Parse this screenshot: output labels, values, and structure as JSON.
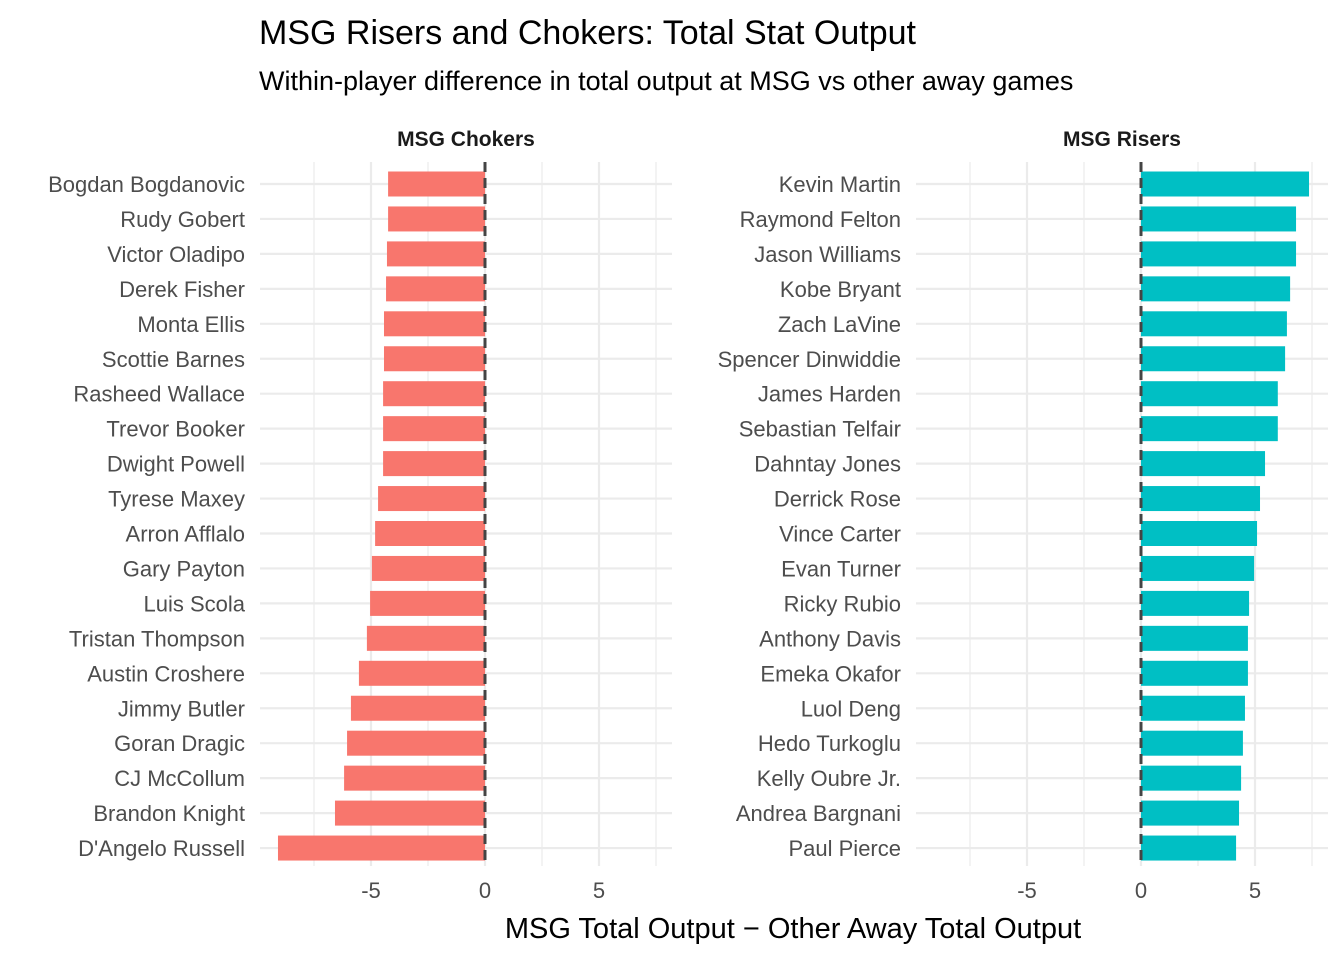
{
  "chart_data": [
    {
      "type": "bar",
      "orientation": "horizontal",
      "panel": "MSG Chokers",
      "color": "#F8766D",
      "categories": [
        "Bogdan Bogdanovic",
        "Rudy Gobert",
        "Victor Oladipo",
        "Derek Fisher",
        "Monta Ellis",
        "Scottie Barnes",
        "Rasheed Wallace",
        "Trevor Booker",
        "Dwight Powell",
        "Tyrese Maxey",
        "Arron Afflalo",
        "Gary Payton",
        "Luis Scola",
        "Tristan Thompson",
        "Austin Croshere",
        "Jimmy Butler",
        "Goran Dragic",
        "CJ McCollum",
        "Brandon Knight",
        "D'Angelo Russell"
      ],
      "values": [
        -4.25,
        -4.25,
        -4.3,
        -4.34,
        -4.43,
        -4.43,
        -4.47,
        -4.47,
        -4.47,
        -4.69,
        -4.82,
        -4.96,
        -5.04,
        -5.18,
        -5.53,
        -5.88,
        -6.05,
        -6.18,
        -6.58,
        -9.08
      ]
    },
    {
      "type": "bar",
      "orientation": "horizontal",
      "panel": "MSG Risers",
      "color": "#00BFC4",
      "categories": [
        "Kevin Martin",
        "Raymond Felton",
        "Jason Williams",
        "Kobe Bryant",
        "Zach LaVine",
        "Spencer Dinwiddie",
        "James Harden",
        "Sebastian Telfair",
        "Dahntay Jones",
        "Derrick Rose",
        "Vince Carter",
        "Evan Turner",
        "Ricky Rubio",
        "Anthony Davis",
        "Emeka Okafor",
        "Luol Deng",
        "Hedo Turkoglu",
        "Kelly Oubre Jr.",
        "Andrea Bargnani",
        "Paul Pierce"
      ],
      "values": [
        7.37,
        6.8,
        6.8,
        6.54,
        6.4,
        6.32,
        6.0,
        6.0,
        5.44,
        5.22,
        5.09,
        4.96,
        4.74,
        4.69,
        4.69,
        4.56,
        4.47,
        4.39,
        4.3,
        4.17
      ]
    }
  ],
  "title": "MSG Risers and Chokers: Total Stat Output",
  "subtitle": "Within-player difference in total output at MSG vs other away games",
  "xlabel": "MSG Total Output − Other Away Total Output",
  "xticks": [
    "-5",
    "0",
    "5"
  ],
  "xtick_values": [
    -5,
    0,
    5
  ],
  "xlim": [
    -9.96,
    8.1
  ],
  "reference_line": {
    "x": 0,
    "style": "dashed",
    "color": "#444444"
  },
  "grid": true,
  "shared_x_axis": true
}
